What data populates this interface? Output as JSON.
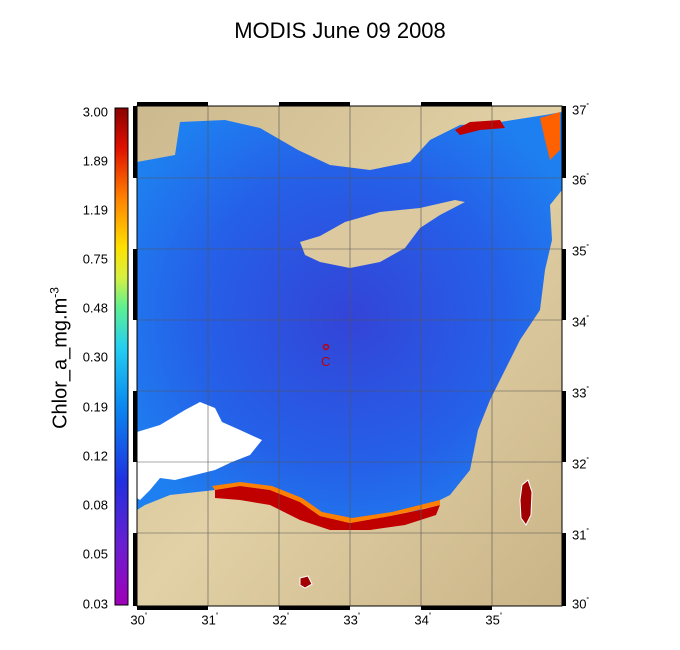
{
  "title": "MODIS June 09 2008",
  "colorbar": {
    "label": "Chlor_a_mg.m",
    "label_exponent": "-3",
    "ticks": [
      "3.00",
      "1.89",
      "1.19",
      "0.75",
      "0.48",
      "0.30",
      "0.19",
      "0.12",
      "0.08",
      "0.05",
      "0.03"
    ]
  },
  "map": {
    "lat_ticks": [
      "37",
      "36",
      "35",
      "34",
      "33",
      "32",
      "31",
      "30"
    ],
    "lon_ticks": [
      "30",
      "31",
      "32",
      "33",
      "34",
      "35"
    ],
    "station_label": "C",
    "colors": {
      "sea": "#2a5fe0",
      "land": "#d8c79a",
      "cloud": "#ffffff",
      "coastal_high": "#b00000"
    }
  }
}
